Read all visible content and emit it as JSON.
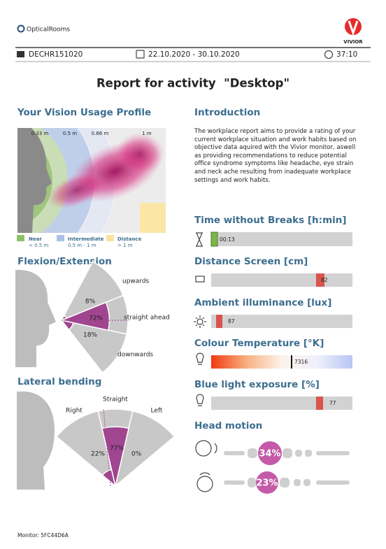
{
  "header": {
    "brand": "OpticalRooms",
    "logo_text": "VIVIOR",
    "id": "DECHR151020",
    "date_range": "22.10.2020 - 30.10.2020",
    "duration": "37:10"
  },
  "title": "Report for activity  \"Desktop\"",
  "vision_profile": {
    "title": "Your Vision Usage Profile",
    "distance_labels": [
      "0.33 m",
      "0.5 m",
      "0.66 m",
      "1 m"
    ],
    "legend": [
      {
        "name": "Near",
        "range": "< 0.5 m"
      },
      {
        "name": "Intermediate",
        "range": "0.5 m - 1 m"
      },
      {
        "name": "Distance",
        "range": "> 1 m"
      }
    ]
  },
  "flexion": {
    "title": "Flexion/Extension",
    "sectors": [
      {
        "label": "upwards",
        "value": 8,
        "value_label": "8%"
      },
      {
        "label": "straight ahead",
        "value": 72,
        "value_label": "72%"
      },
      {
        "label": "downwards",
        "value": 18,
        "value_label": "18%"
      }
    ]
  },
  "lateral": {
    "title": "Lateral bending",
    "sectors": [
      {
        "label": "Right",
        "value": 22,
        "value_label": "22%"
      },
      {
        "label": "Straight",
        "value": 77,
        "value_label": "77%"
      },
      {
        "label": "Left",
        "value": 0,
        "value_label": "0%"
      }
    ]
  },
  "introduction": {
    "title": "Introduction",
    "text": "The workplace report aims to provide a rating of your current workplace situation and work habits based on objective data aquired with the Vivior monitor, aswell as providing recommendations to reduce potential office syndrome symptoms like headache, eye strain and neck ache resulting from inadequate workplace settings and work habits."
  },
  "gauges": [
    {
      "title": "Time without Breaks [h:min]",
      "value": "00:13"
    },
    {
      "title": "Distance Screen [cm]",
      "value": 82
    },
    {
      "title": "Ambient illuminance [lux]",
      "value": 87
    },
    {
      "title": "Colour Temperature [°K]",
      "value": 7316
    },
    {
      "title": "Blue light exposure [%]",
      "value": 77
    }
  ],
  "head_motion": {
    "title": "Head motion",
    "items": [
      "34%",
      "23%"
    ]
  },
  "footer": "Monitor: 5FC44D6A"
}
